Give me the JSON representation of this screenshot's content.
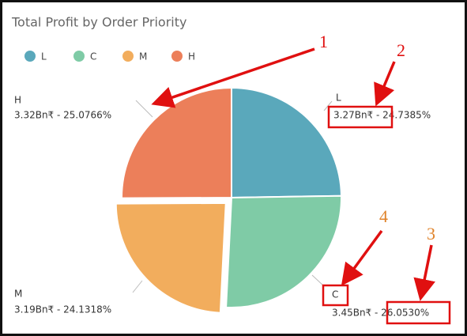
{
  "chart_data": {
    "type": "pie",
    "title": "Total Profit by Order Priority",
    "categories": [
      "L",
      "C",
      "M",
      "H"
    ],
    "values": [
      24.7385,
      26.053,
      24.1318,
      25.0766
    ],
    "value_labels": [
      "3.27Bn₹ - 24.7385%",
      "3.45Bn₹ - 26.0530%",
      "3.19Bn₹ - 24.1318%",
      "3.32Bn₹ - 25.0766%"
    ],
    "colors": [
      "#5aa8bb",
      "#7fcba6",
      "#f2ad5d",
      "#ec7f5a"
    ],
    "exploded": "M",
    "legend": "top-left",
    "annotations": [
      "1",
      "2",
      "3",
      "4"
    ]
  }
}
